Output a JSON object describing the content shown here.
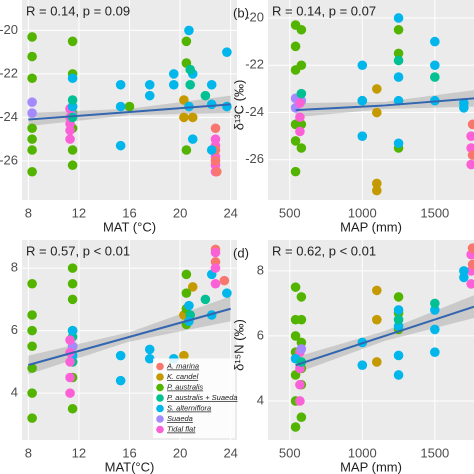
{
  "chart_data": [
    {
      "type": "scatter",
      "annotation": "R = 0.14, p = 0.09",
      "xlabel": "MAT (°C)",
      "xlim": [
        7.5,
        24.5
      ],
      "xticks": [
        8,
        12,
        16,
        20,
        24
      ],
      "ylim": [
        -27.8,
        -18.6
      ],
      "yticks": [
        -20,
        -22,
        -24,
        -26
      ],
      "grid": true,
      "series": [
        {
          "color": "#53B400",
          "x": [
            8.3,
            8.3,
            8.3,
            8.3,
            8.3,
            8.3,
            8.3,
            11.5,
            11.5,
            11.5,
            11.5,
            11.5,
            11.5,
            20.5,
            20.5,
            20.5,
            16
          ],
          "values": [
            -20.3,
            -21.2,
            -22.2,
            -24.5,
            -25,
            -25.5,
            -26.5,
            -20.5,
            -22,
            -23.8,
            -24.5,
            -25.5,
            -26.2,
            -20.5,
            -21.5,
            -25.5,
            -23.5
          ]
        },
        {
          "color": "#A58AFF",
          "x": [
            8.3,
            8.3,
            11.5,
            11.5
          ],
          "values": [
            -23.3,
            -23.8,
            -23.5,
            -23.9
          ]
        },
        {
          "color": "#FB61D7",
          "x": [
            11.3,
            11.3,
            11.3,
            11.3,
            11.3,
            22.8,
            22.8,
            22.8,
            22.8,
            22.8
          ],
          "values": [
            -23.6,
            -24,
            -24.3,
            -24.6,
            -25,
            -25,
            -25.3,
            -25.8,
            -26.2,
            -26.5
          ]
        },
        {
          "color": "#F8766D",
          "x": [
            22.8,
            22.8,
            22.8,
            22.9
          ],
          "values": [
            -24.5,
            -25.5,
            -26,
            -26.5
          ]
        },
        {
          "color": "#C49A00",
          "x": [
            20.3,
            20.3,
            21
          ],
          "values": [
            -23.2,
            -24,
            -24
          ]
        },
        {
          "color": "#00B6EB",
          "x": [
            15.3,
            15.3,
            15.3,
            17.6,
            17.6,
            19.5,
            19.5,
            20.7,
            20.7,
            21,
            21,
            22.5,
            22.5,
            22.5,
            23.7,
            23.7,
            11.5,
            11.5
          ],
          "values": [
            -22.5,
            -23.5,
            -25.3,
            -22.5,
            -23,
            -22,
            -22.5,
            -20,
            -23.5,
            -22,
            -25,
            -22.5,
            -23.4,
            -25.5,
            -21,
            -23.5,
            -22.2,
            -23.5
          ]
        },
        {
          "color": "#00C094",
          "x": [
            11.5,
            11.5,
            20.8,
            20.8,
            22
          ],
          "values": [
            -23.2,
            -24,
            -21.8,
            -22.5,
            -23
          ]
        }
      ],
      "fit": {
        "color": "#3366B0",
        "x": [
          8,
          16,
          24
        ],
        "y": [
          -24.1,
          -23.75,
          -23.4
        ],
        "lower": [
          -24.4,
          -23.9,
          -23.8
        ],
        "upper": [
          -23.8,
          -23.6,
          -23.0
        ]
      }
    },
    {
      "type": "scatter",
      "label": "(b)",
      "annotation": "R = 0.14, p = 0.07",
      "xlabel": "MAP (mm)",
      "ylabel": "δ¹³C (‰)",
      "xlim": [
        350,
        1770
      ],
      "xticks": [
        500,
        1000,
        1500
      ],
      "ylim": [
        -27.7,
        -19.24
      ],
      "yticks": [
        -20,
        -22,
        -24,
        -26
      ],
      "grid": true,
      "series": [
        {
          "color": "#53B400",
          "x": [
            540,
            540,
            540,
            540,
            540,
            540,
            580,
            580,
            580,
            580,
            1250,
            1250,
            1250,
            1000
          ],
          "values": [
            -20.3,
            -21.2,
            -22.2,
            -24.5,
            -25.2,
            -26.5,
            -20.5,
            -22,
            -24.5,
            -25.5,
            -20.5,
            -21.5,
            -25.5,
            -23.5
          ]
        },
        {
          "color": "#A58AFF",
          "x": [
            540,
            540,
            580
          ],
          "values": [
            -23.4,
            -23.8,
            -23.5
          ]
        },
        {
          "color": "#FB61D7",
          "x": [
            570,
            570,
            570,
            1750,
            1750,
            1750
          ],
          "values": [
            -23.6,
            -24.2,
            -24.8,
            -25,
            -25.5,
            -26.2
          ]
        },
        {
          "color": "#F8766D",
          "x": [
            1760,
            1760
          ],
          "values": [
            -24.5,
            -25.8
          ]
        },
        {
          "color": "#C49A00",
          "x": [
            1100,
            1100,
            1100,
            1100
          ],
          "values": [
            -23,
            -24,
            -27,
            -27.3
          ]
        },
        {
          "color": "#00B6EB",
          "x": [
            1000,
            1000,
            1000,
            1250,
            1250,
            1250,
            1250,
            1500,
            1500,
            1500,
            1700,
            1700
          ],
          "values": [
            -22,
            -23.5,
            -25,
            -20,
            -22.5,
            -23.5,
            -25.3,
            -21,
            -22,
            -23.5,
            -23.6,
            -23.8
          ]
        },
        {
          "color": "#00C094",
          "x": [
            580,
            1250,
            1500
          ],
          "values": [
            -23.2,
            -21.8,
            -22.5
          ]
        }
      ],
      "fit": {
        "color": "#3366B0",
        "x": [
          540,
          1155,
          1770
        ],
        "y": [
          -23.9,
          -23.7,
          -23.4
        ],
        "lower": [
          -24.2,
          -23.85,
          -23.75
        ],
        "upper": [
          -23.6,
          -23.55,
          -23.05
        ]
      }
    },
    {
      "type": "scatter",
      "annotation": "R = 0.57, p < 0.01",
      "xlabel": "MAT(°C)",
      "xlim": [
        7.5,
        24.5
      ],
      "xticks": [
        8,
        12,
        16,
        20,
        24
      ],
      "ylim": [
        2.5,
        8.9
      ],
      "yticks": [
        4,
        6,
        8
      ],
      "grid": true,
      "legend": "bottom-right",
      "series": [
        {
          "name": "A. marina",
          "color": "#F8766D",
          "x": [
            22.8,
            22.8,
            23.5
          ],
          "values": [
            8.2,
            8.6,
            7.6
          ]
        },
        {
          "name": "K. candel",
          "color": "#C49A00",
          "x": [
            20.3,
            20.3,
            21
          ],
          "values": [
            5.2,
            6.5,
            7.4
          ]
        },
        {
          "name": "P. australis",
          "color": "#53B400",
          "x": [
            8.3,
            8.3,
            8.3,
            8.3,
            8.3,
            8.3,
            8.3,
            11.5,
            11.5,
            11.5,
            11.5,
            11.5,
            11.5,
            11.5,
            11.5,
            20.5,
            20.5,
            20.5,
            20.5
          ],
          "values": [
            3.2,
            4,
            4.8,
            5.5,
            6,
            6.5,
            7.5,
            3.5,
            4.5,
            5,
            5.5,
            6,
            7,
            7.5,
            8,
            6.2,
            6.7,
            7.2,
            7.8
          ]
        },
        {
          "name": "P. australis + Suaeda",
          "color": "#00C094",
          "x": [
            11.5,
            11.5,
            20.8,
            22
          ],
          "values": [
            5,
            5.8,
            6.5,
            7
          ]
        },
        {
          "name": "S. alterniflora",
          "color": "#00B6EB",
          "x": [
            11.5,
            11.5,
            15.3,
            15.3,
            17.6,
            17.6,
            19.5,
            20.7,
            20.7,
            22.5,
            22.5,
            23.7
          ],
          "values": [
            5.2,
            6,
            4.4,
            5.2,
            5.1,
            5.4,
            5.1,
            6.3,
            6.8,
            6.5,
            7.8,
            7.2
          ]
        },
        {
          "name": "Suaeda",
          "color": "#A58AFF",
          "x": [
            11.5
          ],
          "values": [
            5.5
          ]
        },
        {
          "name": "Tidal flat",
          "color": "#FB61D7",
          "x": [
            11.3,
            11.3,
            11.3,
            11.3,
            11.3,
            22.8,
            22.8,
            22.8
          ],
          "values": [
            4,
            4.5,
            5,
            5.3,
            5.7,
            7.5,
            8,
            8.5
          ]
        }
      ],
      "fit": {
        "color": "#3366B0",
        "x": [
          8,
          16,
          24
        ],
        "y": [
          4.9,
          5.8,
          6.7
        ],
        "lower": [
          4.6,
          5.65,
          6.3
        ],
        "upper": [
          5.2,
          5.95,
          7.1
        ]
      }
    },
    {
      "type": "scatter",
      "label": "(d)",
      "annotation": "R = 0.62, p < 0.01",
      "xlabel": "MAP (mm)",
      "ylabel": "δ¹⁵N (‰)",
      "xlim": [
        350,
        1770
      ],
      "xticks": [
        500,
        1000,
        1500
      ],
      "ylim": [
        2.8,
        8.95
      ],
      "yticks": [
        4,
        6,
        8
      ],
      "grid": true,
      "series": [
        {
          "color": "#53B400",
          "x": [
            540,
            540,
            540,
            540,
            540,
            540,
            540,
            580,
            580,
            580,
            580,
            580,
            580,
            1250,
            1250,
            1250
          ],
          "values": [
            3.2,
            4,
            4.8,
            5.5,
            6,
            6.5,
            7.5,
            3.5,
            4.5,
            5,
            5.8,
            6.5,
            7.2,
            6.2,
            6.7,
            7.2
          ]
        },
        {
          "color": "#FB61D7",
          "x": [
            570,
            570,
            570,
            570,
            1750,
            1750,
            1750
          ],
          "values": [
            4,
            4.5,
            5,
            5.5,
            7.6,
            8,
            8.5
          ]
        },
        {
          "color": "#F8766D",
          "x": [
            1760,
            1760
          ],
          "values": [
            8.2,
            8.7
          ]
        },
        {
          "color": "#C49A00",
          "x": [
            1100,
            1100,
            1100
          ],
          "values": [
            5.2,
            6.5,
            7.4
          ]
        },
        {
          "color": "#00B6EB",
          "x": [
            1000,
            1000,
            1250,
            1250,
            1250,
            1250,
            1500,
            1500,
            1500,
            1700,
            1700,
            540
          ],
          "values": [
            5.1,
            5.8,
            4.8,
            5.4,
            6.3,
            6.8,
            5.5,
            6.2,
            6.8,
            7.8,
            8,
            5.3
          ]
        },
        {
          "color": "#00C094",
          "x": [
            580,
            1250,
            1500
          ],
          "values": [
            5.2,
            6.5,
            7
          ]
        },
        {
          "color": "#A58AFF",
          "x": [
            580
          ],
          "values": [
            5.6
          ]
        }
      ],
      "fit": {
        "color": "#3366B0",
        "x": [
          540,
          1155,
          1770
        ],
        "y": [
          5.1,
          6.0,
          6.9
        ],
        "lower": [
          4.85,
          5.85,
          6.55
        ],
        "upper": [
          5.35,
          6.15,
          7.25
        ]
      }
    }
  ]
}
